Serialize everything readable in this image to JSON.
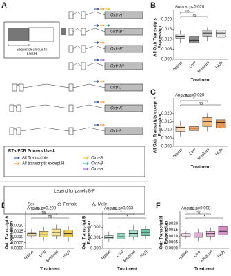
{
  "panel_letters": [
    "A",
    "B",
    "C",
    "D",
    "E",
    "F"
  ],
  "gene_panel": {
    "transcripts": [
      "Oxtr-A*",
      "Oxtr-B*",
      "Oxtr-E*",
      "Oxtr-H*",
      "Oxtr-J",
      "Oxtr-K",
      "Oxtr-L"
    ],
    "inset_text": [
      "Sequence unique to",
      "Oxtr-B"
    ]
  },
  "primers": {
    "title": "RT-qPCR Primers Used:",
    "items": [
      {
        "label": "All Transcripts",
        "color": "#1f4e9c"
      },
      {
        "label": "All transcripts except H",
        "color": "#f08a24"
      },
      {
        "label": "Oxtr-A",
        "color": "#e8c21a"
      },
      {
        "label": "Oxtr-B",
        "color": "#2aa58a"
      },
      {
        "label": "Oxtr-H",
        "color": "#9b4fc4"
      }
    ]
  },
  "legend": {
    "title": "Legend for panels B-F",
    "sex_label": "Sex",
    "female": "Female",
    "male": "Male"
  },
  "chart_data": [
    {
      "type": "box",
      "annotation": "Anova, p=0.028",
      "ylabel": [
        "All Oxtr Transcripts",
        "Expression"
      ],
      "xlabel": "Treatment",
      "categories": [
        "Saline",
        "Low",
        "Medium",
        "High"
      ],
      "colors": [
        "#d9d9d9",
        "#8c8c8c",
        "#c4c4c4",
        "#e6e6e6"
      ],
      "boxes": [
        {
          "low": 0.008,
          "q1": 0.0105,
          "median": 0.0115,
          "q3": 0.0125,
          "high": 0.0145
        },
        {
          "low": 0.006,
          "q1": 0.008,
          "median": 0.0095,
          "q3": 0.0115,
          "high": 0.014
        },
        {
          "low": 0.009,
          "q1": 0.0115,
          "median": 0.013,
          "q3": 0.0145,
          "high": 0.016
        },
        {
          "low": 0.007,
          "q1": 0.011,
          "median": 0.013,
          "q3": 0.0145,
          "high": 0.017
        }
      ],
      "comparisons": [
        "ns",
        "ns"
      ],
      "ylim": [
        0,
        0.022
      ],
      "yticks": [
        {
          "value": 0,
          "label": "0.000"
        },
        {
          "value": 0.005,
          "label": "0.005"
        },
        {
          "value": 0.01,
          "label": "0.010"
        },
        {
          "value": 0.015,
          "label": "0.015"
        },
        {
          "value": 0.02,
          "label": "0.020"
        }
      ]
    },
    {
      "type": "box",
      "annotation": "Anova, p=0.020",
      "ylabel": [
        "All Oxtr Transcripts except H",
        "Expression"
      ],
      "xlabel": "Treatment",
      "categories": [
        "Saline",
        "Low",
        "Medium",
        "High"
      ],
      "colors": [
        "#fbd9b9",
        "#f4a460",
        "#f5b97a",
        "#e8944a"
      ],
      "boxes": [
        {
          "low": 0.006,
          "q1": 0.009,
          "median": 0.0115,
          "q3": 0.0125,
          "high": 0.015
        },
        {
          "low": 0.008,
          "q1": 0.0095,
          "median": 0.011,
          "q3": 0.012,
          "high": 0.014
        },
        {
          "low": 0.009,
          "q1": 0.012,
          "median": 0.015,
          "q3": 0.0175,
          "high": 0.02
        },
        {
          "low": 0.01,
          "q1": 0.011,
          "median": 0.0145,
          "q3": 0.016,
          "high": 0.018
        }
      ],
      "comparisons": [
        "ns",
        "*",
        "ns"
      ],
      "ylim": [
        0,
        0.026
      ],
      "yticks": [
        {
          "value": 0,
          "label": "0.000"
        },
        {
          "value": 0.005,
          "label": "0.005"
        },
        {
          "value": 0.01,
          "label": "0.010"
        },
        {
          "value": 0.015,
          "label": "0.015"
        },
        {
          "value": 0.02,
          "label": "0.020"
        }
      ]
    },
    {
      "type": "box",
      "annotation": "Anova, p=0.299",
      "ylabel": [
        "Oxtr Transcript A",
        "Expression"
      ],
      "xlabel": "Treatment",
      "categories": [
        "Saline",
        "Low",
        "Medium",
        "High"
      ],
      "colors": [
        "#fbeeb0",
        "#f3d76a",
        "#f7e38e",
        "#eecb45"
      ],
      "boxes": [
        {
          "low": 0.0009,
          "q1": 0.0011,
          "median": 0.0013,
          "q3": 0.0014,
          "high": 0.0017
        },
        {
          "low": 0.0007,
          "q1": 0.001,
          "median": 0.0012,
          "q3": 0.0015,
          "high": 0.0019
        },
        {
          "low": 0.0008,
          "q1": 0.0011,
          "median": 0.0014,
          "q3": 0.0017,
          "high": 0.0021
        },
        {
          "low": 0.0006,
          "q1": 0.001,
          "median": 0.0013,
          "q3": 0.0016,
          "high": 0.002
        }
      ],
      "comparisons": [
        "ns",
        "ns",
        "ns"
      ],
      "ylim": [
        0,
        0.0028
      ],
      "yticks": [
        {
          "value": 0,
          "label": "0.0000"
        },
        {
          "value": 0.0005,
          "label": "0.0005"
        },
        {
          "value": 0.001,
          "label": "0.0010"
        },
        {
          "value": 0.0015,
          "label": "0.0015"
        },
        {
          "value": 0.002,
          "label": "0.0020"
        }
      ]
    },
    {
      "type": "box",
      "annotation": "Anova, p=0.033",
      "ylabel": [
        "Oxtr Transcript B",
        "Expression"
      ],
      "xlabel": "Treatment",
      "categories": [
        "Saline",
        "Low",
        "Medium",
        "High"
      ],
      "colors": [
        "#c8ecdf",
        "#8fd6bd",
        "#a9e0cb",
        "#6cc5a4"
      ],
      "boxes": [
        {
          "low": 0.0006,
          "q1": 0.0009,
          "median": 0.001,
          "q3": 0.0012,
          "high": 0.0016
        },
        {
          "low": 0.0005,
          "q1": 0.0009,
          "median": 0.0011,
          "q3": 0.0014,
          "high": 0.002
        },
        {
          "low": 0.0008,
          "q1": 0.0011,
          "median": 0.0014,
          "q3": 0.0017,
          "high": 0.0022
        },
        {
          "low": 0.0009,
          "q1": 0.0012,
          "median": 0.0015,
          "q3": 0.0018,
          "high": 0.0021
        }
      ],
      "comparisons": [
        "ns",
        "*",
        "*"
      ],
      "ylim": [
        0,
        0.003
      ],
      "yticks": [
        {
          "value": 0,
          "label": "0.000"
        },
        {
          "value": 0.001,
          "label": "0.001"
        },
        {
          "value": 0.002,
          "label": "0.002"
        }
      ]
    },
    {
      "type": "box",
      "annotation": "Anova, p=0.008",
      "ylabel": [
        "Oxtr Transcript H",
        "Expression"
      ],
      "xlabel": "Treatment",
      "categories": [
        "Saline",
        "Low",
        "Medium",
        "High"
      ],
      "colors": [
        "#f6d3ec",
        "#e9a9d8",
        "#f0bfe2",
        "#dc8ccb"
      ],
      "boxes": [
        {
          "low": 0.0008,
          "q1": 0.001,
          "median": 0.0011,
          "q3": 0.0012,
          "high": 0.0014
        },
        {
          "low": 0.0006,
          "q1": 0.0009,
          "median": 0.0011,
          "q3": 0.0013,
          "high": 0.0016
        },
        {
          "low": 0.0007,
          "q1": 0.001,
          "median": 0.0012,
          "q3": 0.0014,
          "high": 0.0017
        },
        {
          "low": 0.0009,
          "q1": 0.0011,
          "median": 0.0014,
          "q3": 0.0018,
          "high": 0.0021
        }
      ],
      "comparisons": [
        "ns",
        "ns",
        "*"
      ],
      "ylim": [
        0,
        0.0026
      ],
      "yticks": [
        {
          "value": 0,
          "label": "0.0000"
        },
        {
          "value": 0.0005,
          "label": "0.0005"
        },
        {
          "value": 0.001,
          "label": "0.0010"
        },
        {
          "value": 0.0015,
          "label": "0.0015"
        },
        {
          "value": 0.002,
          "label": "0.0020"
        }
      ]
    }
  ]
}
